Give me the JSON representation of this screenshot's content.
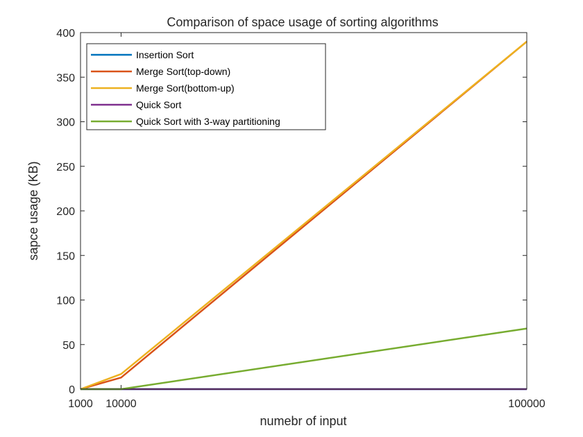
{
  "chart_data": {
    "type": "line",
    "title": "Comparison of space usage of sorting algorithms",
    "xlabel": "numebr of input",
    "ylabel": "sapce usage (KB)",
    "x": [
      1000,
      10000,
      100000
    ],
    "xticks": [
      "1000",
      "10000",
      "100000"
    ],
    "xlim": [
      1000,
      100000
    ],
    "yticks": [
      "0",
      "50",
      "100",
      "150",
      "200",
      "250",
      "300",
      "350",
      "400"
    ],
    "ylim": [
      0,
      400
    ],
    "grid": false,
    "legend_position": "top-left",
    "series": [
      {
        "name": "Insertion Sort",
        "color": "#0072BD",
        "values": [
          0,
          0,
          0
        ]
      },
      {
        "name": "Merge Sort(top-down)",
        "color": "#D95319",
        "values": [
          0,
          13,
          390
        ]
      },
      {
        "name": "Merge Sort(bottom-up)",
        "color": "#EDB120",
        "values": [
          0,
          17,
          390
        ]
      },
      {
        "name": "Quick Sort",
        "color": "#7E2F8E",
        "values": [
          0,
          0,
          0
        ]
      },
      {
        "name": "Quick Sort with 3-way partitioning",
        "color": "#77AC30",
        "values": [
          0,
          0,
          68
        ]
      }
    ]
  }
}
